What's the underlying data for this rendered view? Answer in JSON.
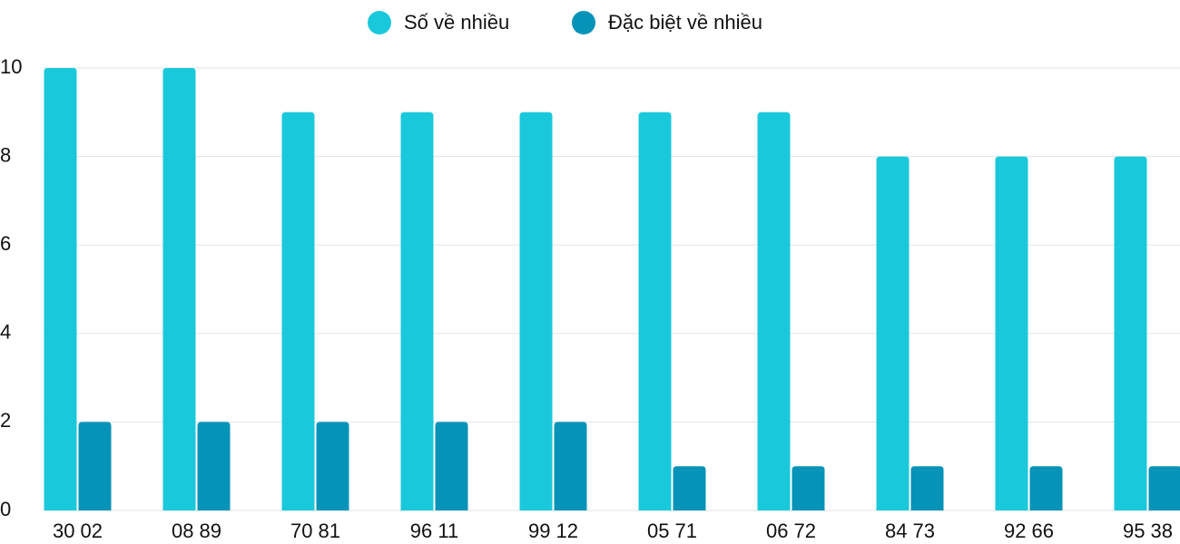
{
  "chart_data": {
    "type": "bar",
    "categories": [
      "30 02",
      "08 89",
      "70 81",
      "96 11",
      "99 12",
      "05 71",
      "06 72",
      "84 73",
      "92 66",
      "95 38"
    ],
    "series": [
      {
        "name": "Số về nhiều",
        "color": "#1ac8db",
        "values": [
          10,
          10,
          9,
          9,
          9,
          9,
          9,
          8,
          8,
          8
        ]
      },
      {
        "name": "Đặc biệt về nhiều",
        "color": "#0593b8",
        "values": [
          2,
          2,
          2,
          2,
          2,
          1,
          1,
          1,
          1,
          1
        ]
      }
    ],
    "ylim": [
      0,
      10
    ],
    "yticks": [
      0,
      2,
      4,
      6,
      8,
      10
    ],
    "grid": true,
    "legend": "top"
  }
}
